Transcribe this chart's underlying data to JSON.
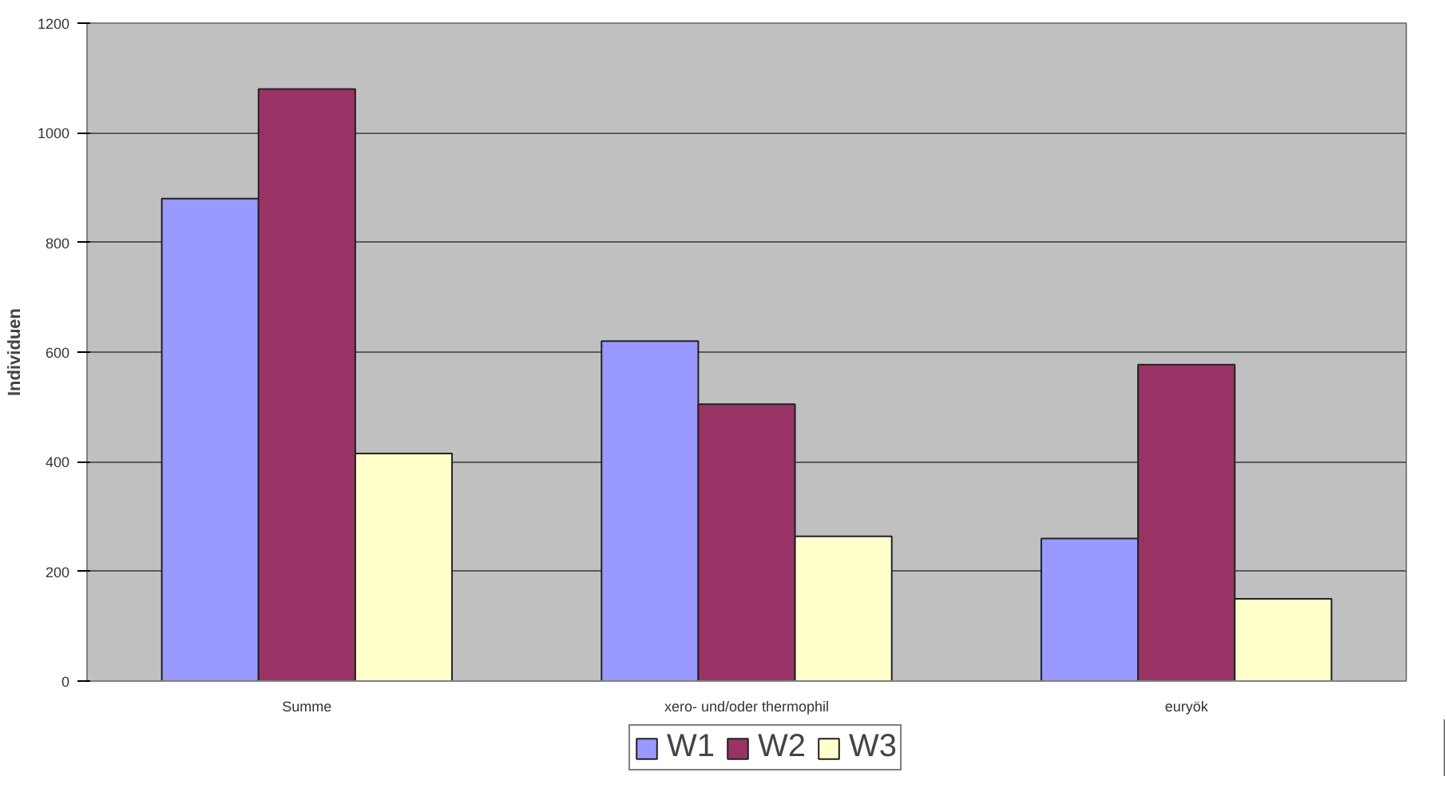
{
  "chart_data": {
    "type": "bar",
    "ylabel": "Individuen",
    "categories": [
      "Summe",
      "xero- und/oder thermophil",
      "euryök"
    ],
    "series": [
      {
        "name": "W1",
        "color": "#9999ff",
        "values": [
          880,
          620,
          260
        ]
      },
      {
        "name": "W2",
        "color": "#993366",
        "values": [
          1080,
          505,
          577
        ]
      },
      {
        "name": "W3",
        "color": "#ffffcc",
        "values": [
          415,
          264,
          150
        ]
      }
    ],
    "ylim": [
      0,
      1200
    ],
    "yticks": [
      0,
      200,
      400,
      600,
      800,
      1000,
      1200
    ],
    "grid": "y",
    "legend": "bottom"
  }
}
